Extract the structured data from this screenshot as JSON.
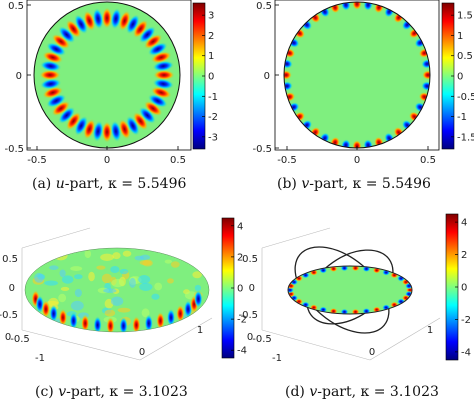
{
  "figure": {
    "panels": [
      {
        "id": "a",
        "kind": "disk",
        "caption": {
          "prefix": "(a)",
          "variable": "u",
          "suffix": "-part,",
          "kappa_text": "κ = 5.5496"
        },
        "xticks": [
          "-0.5",
          "0",
          "0.5"
        ],
        "yticks": [
          "0.5",
          "0",
          "-0.5"
        ],
        "colorbar_ticks": [
          "3",
          "2",
          "1",
          "0",
          "-1",
          "-2",
          "-3"
        ],
        "colorbar_range": [
          -3.6,
          3.6
        ],
        "mode_count": 20,
        "pattern": "interior ring of alternating red/blue lobes"
      },
      {
        "id": "b",
        "kind": "disk",
        "caption": {
          "prefix": "(b)",
          "variable": "v",
          "suffix": "-part,",
          "kappa_text": "κ = 5.5496"
        },
        "xticks": [
          "-0.5",
          "0",
          "0.5"
        ],
        "yticks": [
          "0.5",
          "0",
          "-0.5"
        ],
        "colorbar_ticks": [
          "1.5",
          "1",
          "0.5",
          "0",
          "-0.5",
          "-1",
          "-1.5"
        ],
        "colorbar_range": [
          -1.8,
          1.8
        ],
        "mode_count": 20,
        "pattern": "boundary-localized alternating red/blue lobes"
      },
      {
        "id": "c",
        "kind": "3d-surface",
        "caption": {
          "prefix": "(c)",
          "variable": "v",
          "suffix": "-part,",
          "kappa_text": "κ = 3.1023"
        },
        "zticks": [
          "0.5",
          "0",
          "-0.5"
        ],
        "xticks": [
          "-1",
          "-0.5",
          "0"
        ],
        "yticks": [
          "0",
          "1"
        ],
        "colorbar_ticks": [
          "4",
          "2",
          "0",
          "-2",
          "-4"
        ],
        "colorbar_range": [
          -4.5,
          4.5
        ]
      },
      {
        "id": "d",
        "kind": "3d-ellipse",
        "caption": {
          "prefix": "(d)",
          "variable": "v",
          "suffix": "-part,",
          "kappa_text": "κ = 3.1023"
        },
        "zticks": [
          "0.5",
          "0",
          "-0.5"
        ],
        "xticks": [
          "-1",
          "-0.5",
          "0"
        ],
        "yticks": [
          "0",
          "1"
        ],
        "colorbar_ticks": [
          "4",
          "2",
          "0",
          "-2",
          "-4"
        ],
        "colorbar_range": [
          -4.5,
          4.5
        ]
      }
    ],
    "colormap": [
      "#00007f",
      "#0000ff",
      "#007fff",
      "#00ffff",
      "#7fff7f",
      "#ffff00",
      "#ff7f00",
      "#ff0000",
      "#7f0000"
    ],
    "background_field_color": "#7fef7f"
  }
}
